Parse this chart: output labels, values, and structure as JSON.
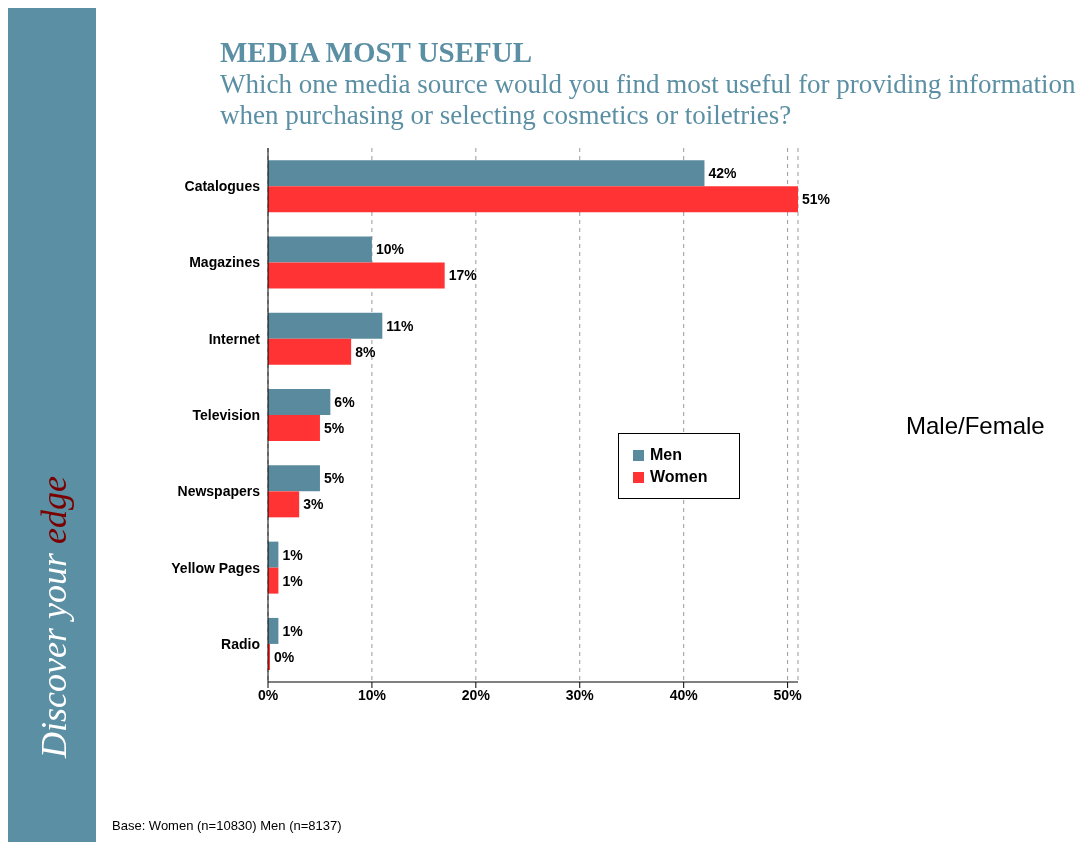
{
  "chart_data": {
    "type": "bar",
    "orientation": "horizontal",
    "title": "MEDIA MOST USEFUL",
    "subtitle": "Which one media source would you find most useful for providing information when purchasing or selecting cosmetics or toiletries?",
    "categories": [
      "Catalogues",
      "Magazines",
      "Internet",
      "Television",
      "Newspapers",
      "Yellow Pages",
      "Radio"
    ],
    "series": [
      {
        "name": "Men",
        "color": "#5a8a9e",
        "values": [
          42,
          10,
          11,
          6,
          5,
          1,
          1
        ],
        "value_labels": [
          "42%",
          "10%",
          "11%",
          "6%",
          "5%",
          "1%",
          "1%"
        ]
      },
      {
        "name": "Women",
        "color": "#ff3333",
        "values": [
          51,
          17,
          8,
          5,
          3,
          1,
          0
        ],
        "value_labels": [
          "51%",
          "17%",
          "8%",
          "5%",
          "3%",
          "1%",
          "0%"
        ]
      }
    ],
    "xlim": [
      0,
      51
    ],
    "xticks": [
      {
        "value": 0,
        "label": "0%"
      },
      {
        "value": 10,
        "label": "10%"
      },
      {
        "value": 20,
        "label": "20%"
      },
      {
        "value": 30,
        "label": "30%"
      },
      {
        "value": 40,
        "label": "40%"
      },
      {
        "value": 50,
        "label": "50%"
      }
    ],
    "grid": "x",
    "legend": "right",
    "annotations": [
      "Discover your ",
      "edge",
      "Male/Female",
      "Base: Women (n=10830) Men (n=8137)"
    ]
  }
}
